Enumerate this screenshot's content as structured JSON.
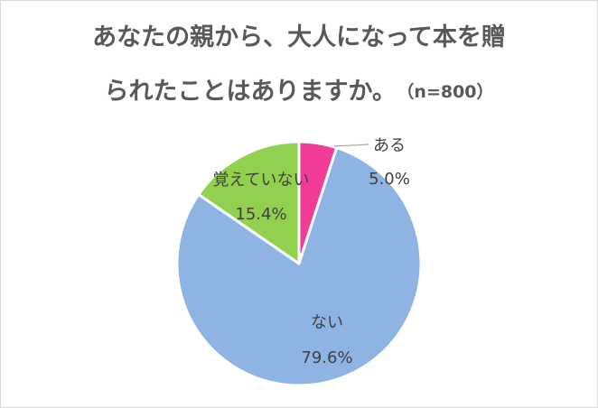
{
  "chart_data": {
    "type": "pie",
    "title": "あなたの親から、大人になって本を贈られたことはありますか。",
    "title_line1": "あなたの親から、大人になって本を贈",
    "title_line2": "られたことはありますか。",
    "subtitle": "（n=800）",
    "slices": [
      {
        "label": "ある",
        "value": 5.0,
        "value_label": "5.0%",
        "color": "#f03c96"
      },
      {
        "label": "ない",
        "value": 79.6,
        "value_label": "79.6%",
        "color": "#8eb4e3"
      },
      {
        "label": "覚えていない",
        "value": 15.4,
        "value_label": "15.4%",
        "color": "#92d050"
      }
    ],
    "start": "top",
    "direction": "clockwise",
    "legend": "none",
    "data_labels": "category-and-percent"
  }
}
